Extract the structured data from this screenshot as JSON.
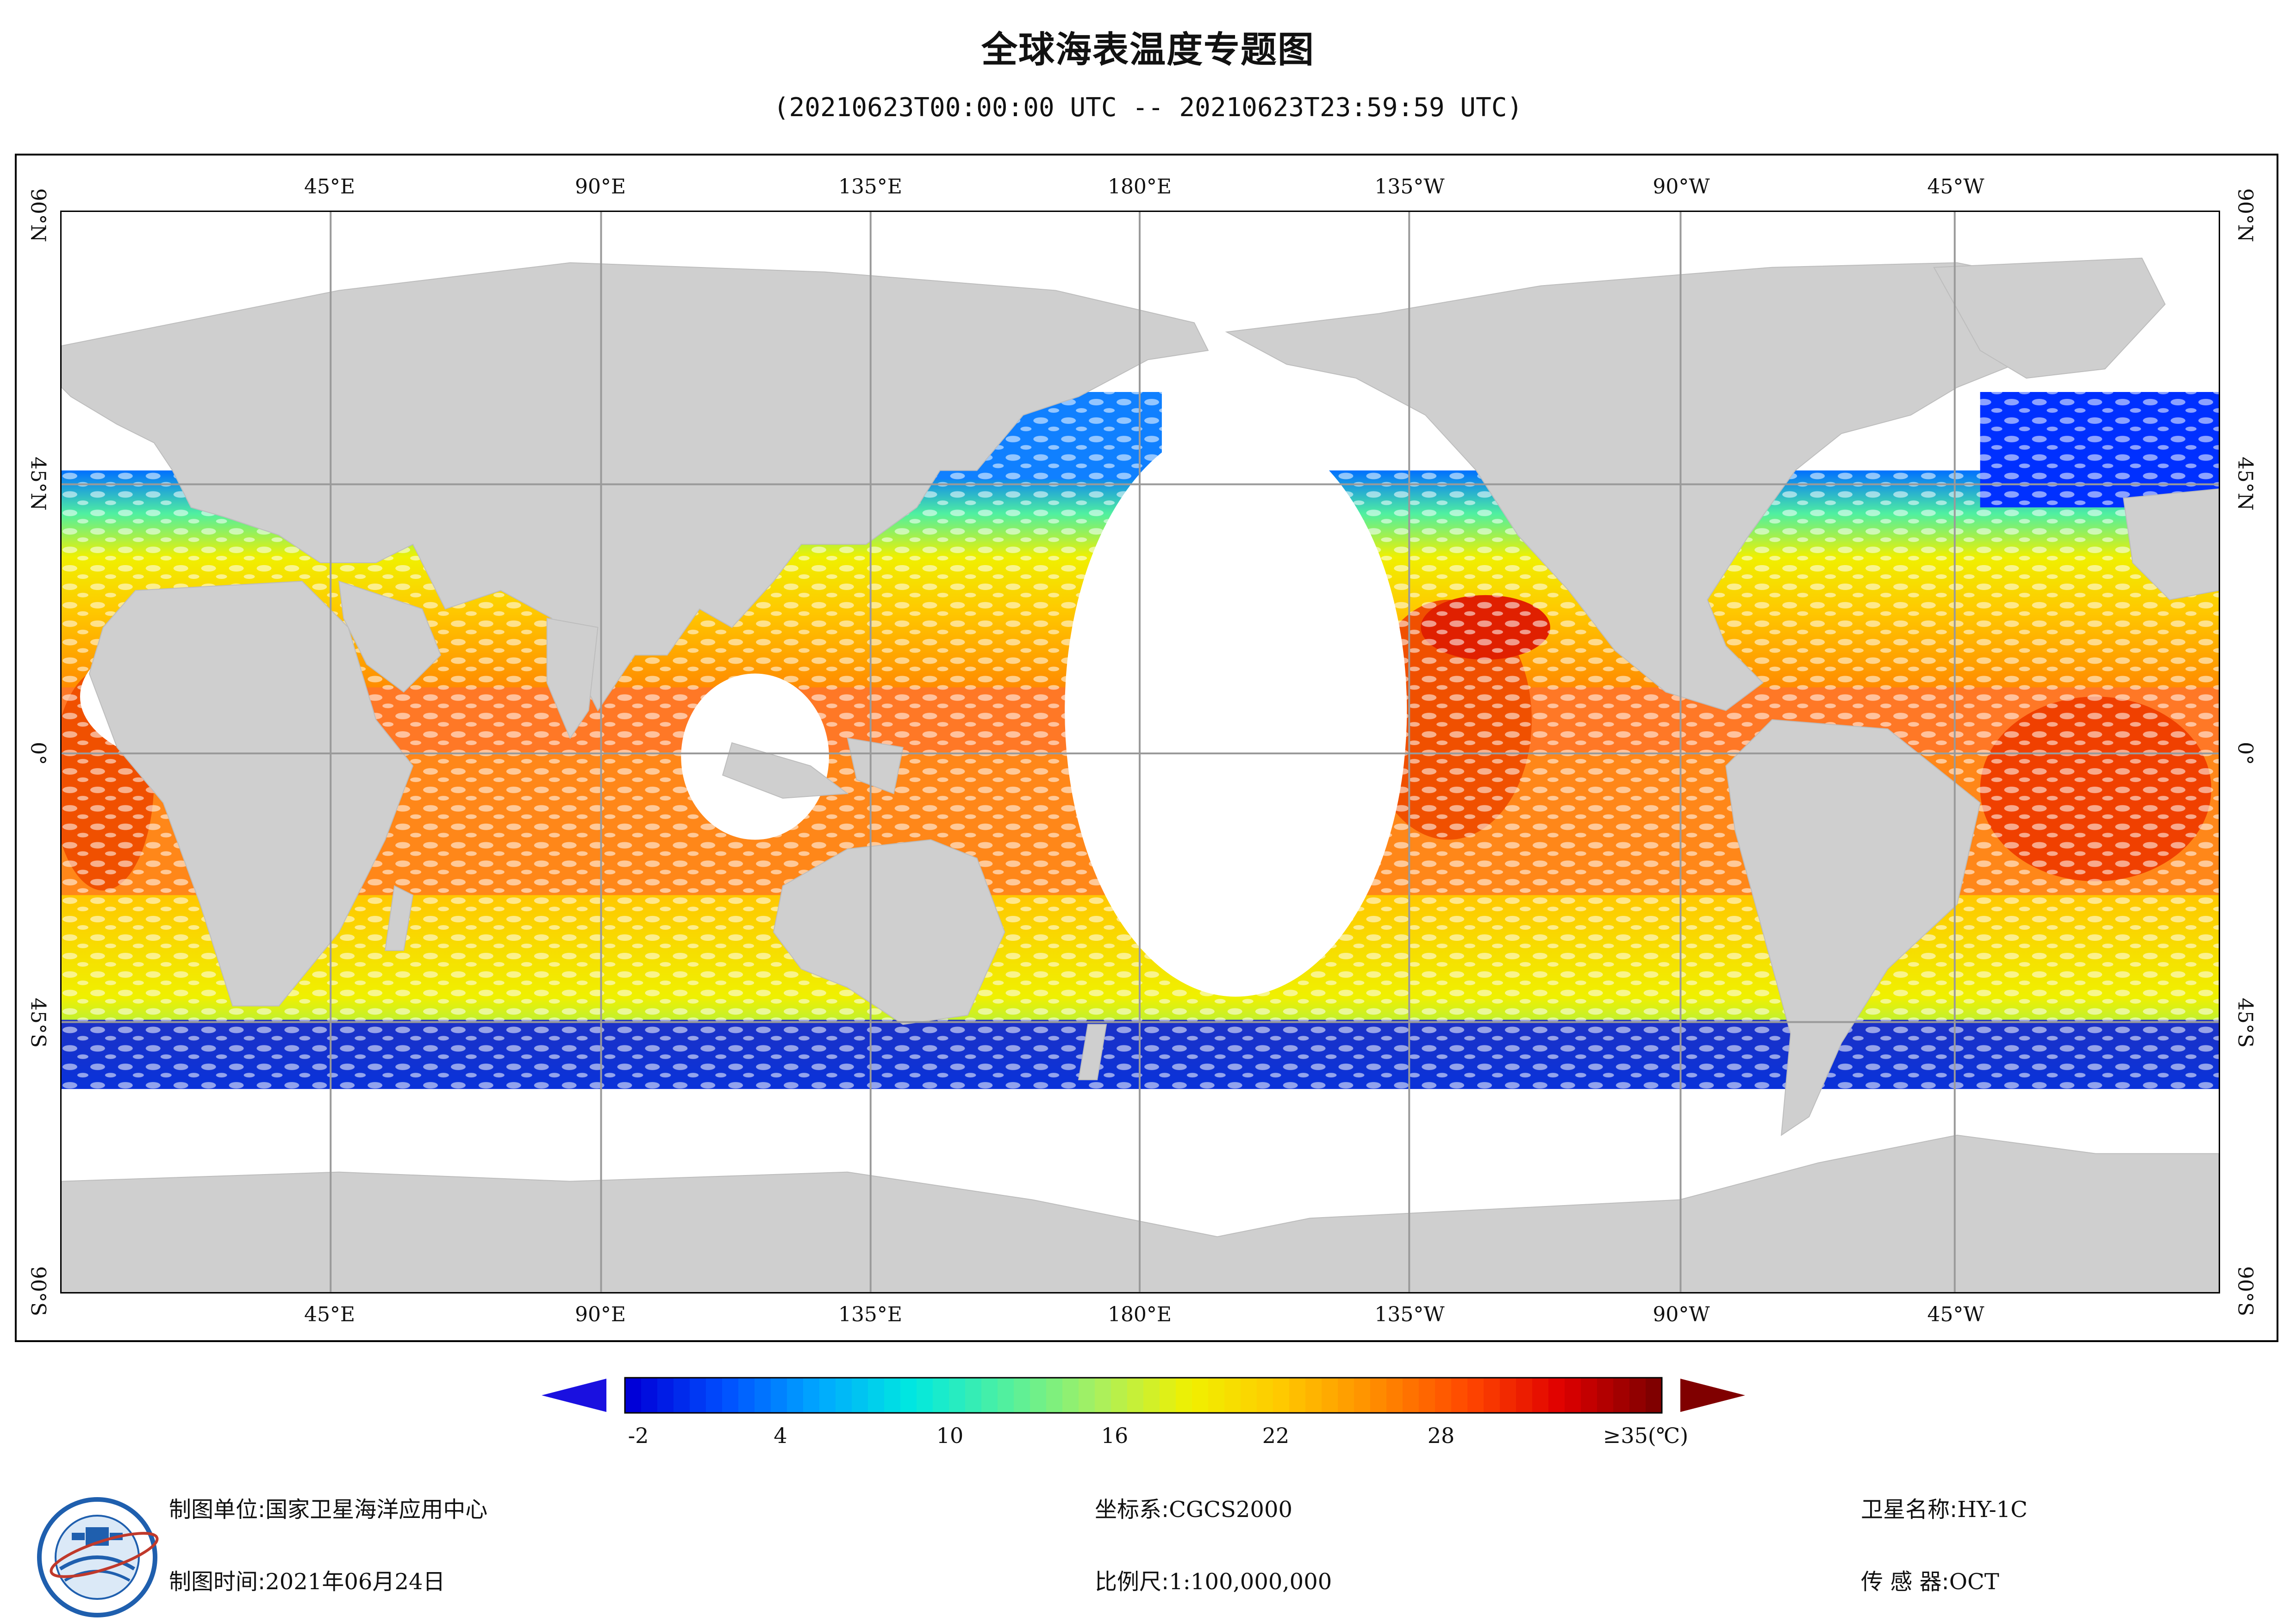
{
  "title": "全球海表温度专题图",
  "time_range": "(20210623T00:00:00 UTC -- 20210623T23:59:59 UTC)",
  "map": {
    "longitude_labels": [
      "45°E",
      "90°E",
      "135°E",
      "180°E",
      "135°W",
      "90°W",
      "45°W"
    ],
    "latitude_labels": [
      "90°N",
      "45°N",
      "0°",
      "45°S",
      "90°S"
    ],
    "colors": {
      "land": "#cfcfcf",
      "ocean_nodata": "#ffffff",
      "grid": "#9a9a9a"
    }
  },
  "colorbar": {
    "tick_labels": [
      "-2",
      "4",
      "10",
      "16",
      "22",
      "28",
      "≥35(℃)"
    ],
    "colors": [
      "#0000d8",
      "#0050ff",
      "#00a8ff",
      "#00e8e0",
      "#50f0a0",
      "#a8f060",
      "#f0f000",
      "#ffc800",
      "#ff8c00",
      "#ff4800",
      "#e00000",
      "#800000"
    ]
  },
  "footer": {
    "org_label": "制图单位:",
    "org_value": "国家卫星海洋应用中心",
    "date_label": "制图时间:",
    "date_value": "2021年06月24日",
    "crs_label": "坐标系:",
    "crs_value": "CGCS2000",
    "scale_label": "比例尺:",
    "scale_value": "1:100,000,000",
    "satellite_label": "卫星名称:",
    "satellite_value": "HY-1C",
    "sensor_label": "传 感 器:",
    "sensor_value": "OCT"
  }
}
